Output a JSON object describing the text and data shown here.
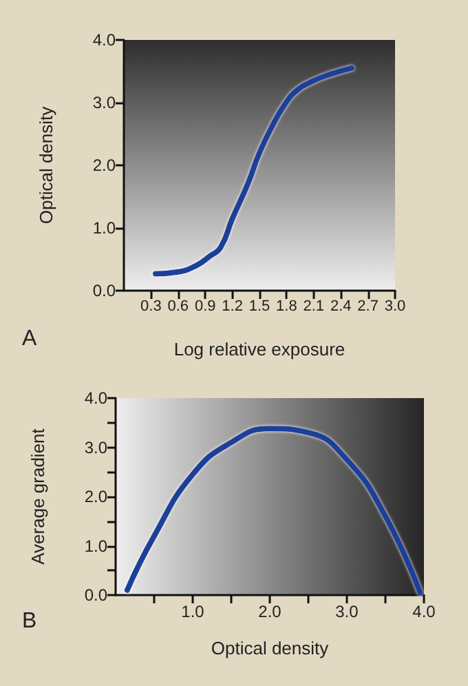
{
  "chart_data": [
    {
      "type": "line",
      "xlabel": "Log relative exposure",
      "ylabel": "Optical density",
      "annotations": [
        "A"
      ],
      "x": [
        0.35,
        0.6,
        0.8,
        0.95,
        1.07,
        1.2,
        1.37,
        1.5,
        1.65,
        1.78,
        1.9,
        2.1,
        2.3,
        2.52
      ],
      "series": [
        {
          "color": "#1a3f9a",
          "values": [
            0.27,
            0.3,
            0.4,
            0.55,
            0.69,
            1.15,
            1.7,
            2.2,
            2.65,
            2.97,
            3.18,
            3.35,
            3.46,
            3.55
          ]
        }
      ],
      "xlim": [
        0,
        3
      ],
      "xticks": [
        0.3,
        0.6,
        0.9,
        1.2,
        1.5,
        1.8,
        2.1,
        2.4,
        2.7,
        {
          "value": 3,
          "label": "3.0"
        }
      ],
      "ylim": [
        0,
        4
      ],
      "yticks": [
        {
          "value": 0,
          "label": "0.0"
        },
        {
          "value": 1,
          "label": "1.0"
        },
        {
          "value": 2,
          "label": "2.0"
        },
        {
          "value": 3,
          "label": "3.0"
        },
        {
          "value": 4,
          "label": "4.0"
        }
      ],
      "grid": false,
      "marker": "none",
      "line_style": "solid"
    },
    {
      "type": "line",
      "xlabel": "Optical density",
      "ylabel": "Average gradient",
      "annotations": [
        "B"
      ],
      "x": [
        0.15,
        0.5,
        1.0,
        1.5,
        2.0,
        2.5,
        3.0,
        3.5,
        3.95
      ],
      "series": [
        {
          "color": "#1a3f9a",
          "values": [
            0.1,
            1.2,
            2.45,
            3.1,
            3.38,
            3.3,
            2.75,
            1.6,
            0.05
          ]
        }
      ],
      "xlim": [
        0,
        4
      ],
      "xticks": [
        {
          "value": 0.5,
          "label": null
        },
        {
          "value": 1,
          "label": "1.0"
        },
        {
          "value": 1.5,
          "label": null
        },
        {
          "value": 2,
          "label": "2.0"
        },
        {
          "value": 2.5,
          "label": null
        },
        {
          "value": 3,
          "label": "3.0"
        },
        {
          "value": 3.5,
          "label": null
        },
        {
          "value": 4,
          "label": "4.0"
        }
      ],
      "ylim": [
        0,
        4
      ],
      "yticks": [
        {
          "value": 0,
          "label": "0.0"
        },
        {
          "value": 0.5,
          "label": null
        },
        {
          "value": 1,
          "label": "1.0"
        },
        {
          "value": 1.5,
          "label": null
        },
        {
          "value": 2,
          "label": "2.0"
        },
        {
          "value": 2.5,
          "label": null
        },
        {
          "value": 3,
          "label": "3.0"
        },
        {
          "value": 3.5,
          "label": null
        },
        {
          "value": 4,
          "label": "4.0"
        }
      ],
      "grid": false,
      "marker": "none",
      "line_style": "solid"
    }
  ]
}
